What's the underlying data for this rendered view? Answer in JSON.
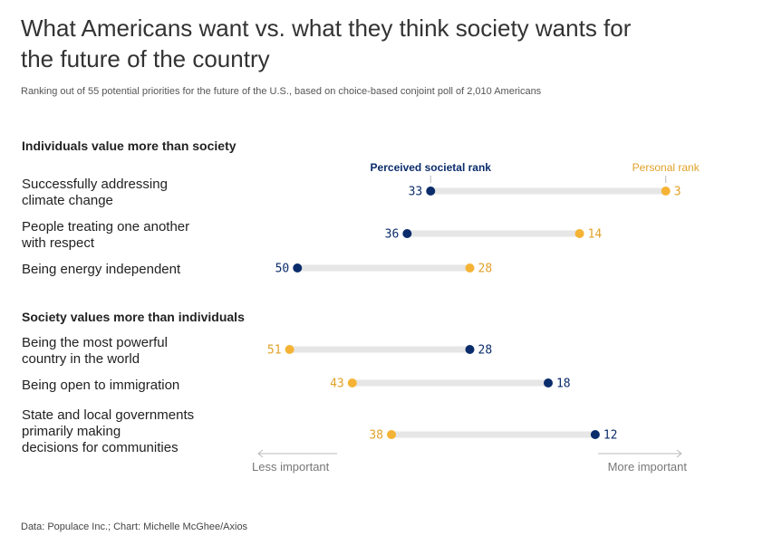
{
  "title": "What Americans want vs. what they think society wants for the future of the country",
  "subtitle": "Ranking out of 55 potential priorities for the future of the U.S., based on choice-based conjoint poll of 2,010 Americans",
  "source": "Data: Populace Inc.; Chart: Michelle McGhee/Axios",
  "colors": {
    "societal": "#0b2c6b",
    "personal": "#f5b335",
    "track": "#e6e6e6",
    "axis": "#bbbbbb"
  },
  "chart_data": {
    "type": "dumbbell",
    "scale": {
      "min_rank": 55,
      "max_rank": 1,
      "direction": "left = less important, right = more important"
    },
    "legend": {
      "societal": "Perceived societal rank",
      "personal": "Personal rank"
    },
    "axis_labels": {
      "left": "Less important",
      "right": "More important"
    },
    "groups": [
      {
        "heading": "Individuals value more than society",
        "rows": [
          {
            "label": "Successfully addressing climate change",
            "lines": [
              "Successfully addressing",
              "climate change"
            ],
            "societal": 33,
            "personal": 3
          },
          {
            "label": "People treating one another with respect",
            "lines": [
              "People treating one another",
              "with respect"
            ],
            "societal": 36,
            "personal": 14
          },
          {
            "label": "Being energy independent",
            "lines": [
              "Being energy independent"
            ],
            "societal": 50,
            "personal": 28
          }
        ]
      },
      {
        "heading": "Society values more than individuals",
        "rows": [
          {
            "label": "Being the most powerful country in the world",
            "lines": [
              "Being the most powerful",
              "country in the world"
            ],
            "societal": 28,
            "personal": 51
          },
          {
            "label": "Being open to immigration",
            "lines": [
              "Being open to immigration"
            ],
            "societal": 18,
            "personal": 43
          },
          {
            "label": "State and local governments primarily making decisions for communities",
            "lines": [
              "State and local governments",
              "primarily making",
              "decisions for communities"
            ],
            "societal": 12,
            "personal": 38
          }
        ]
      }
    ]
  }
}
